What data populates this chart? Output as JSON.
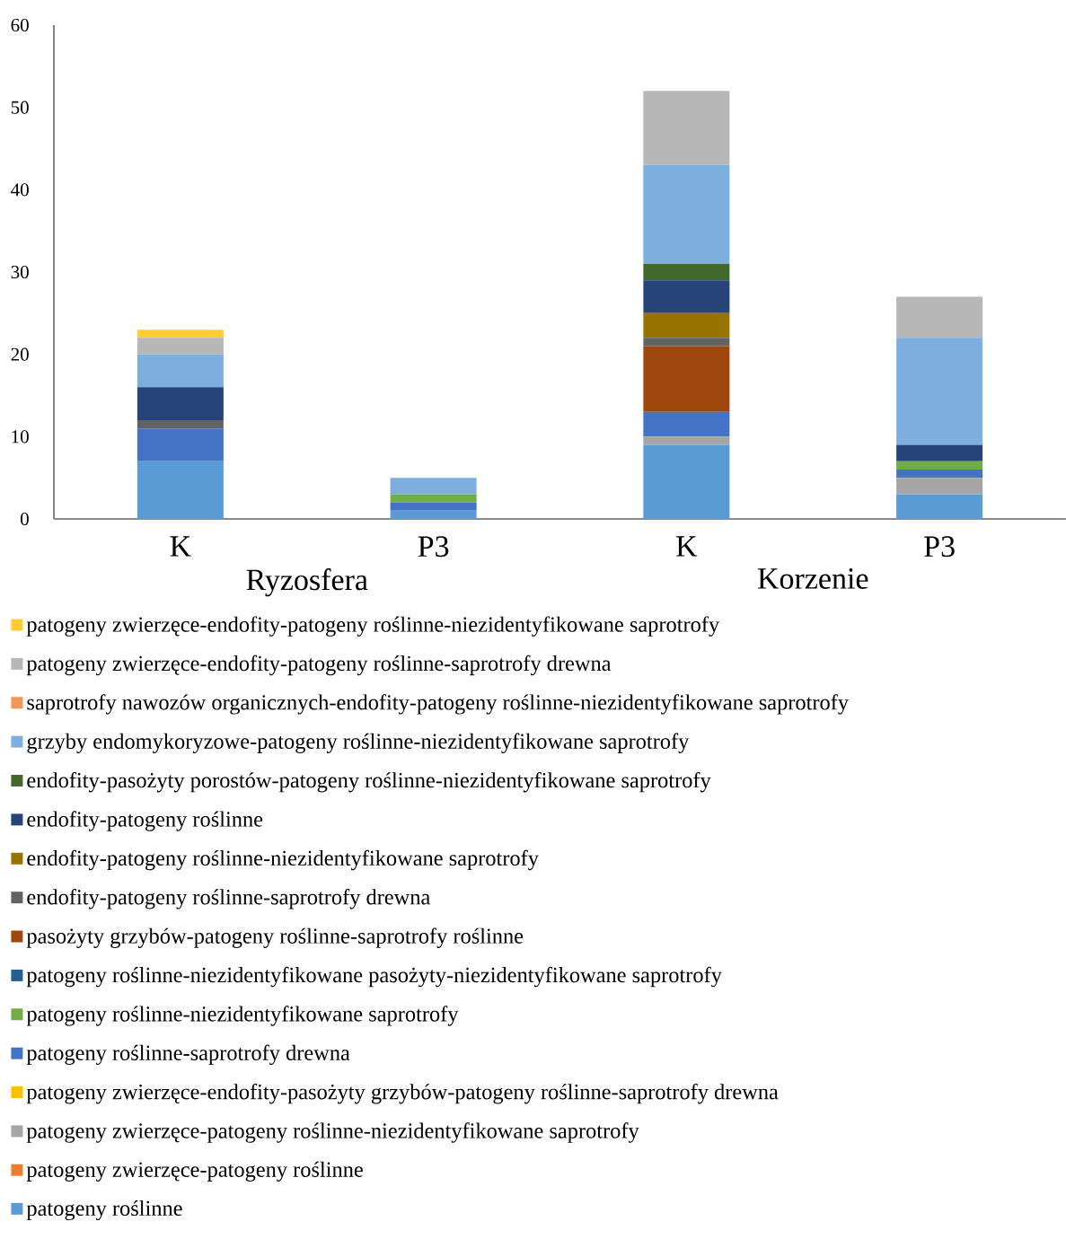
{
  "chart_data": {
    "type": "bar",
    "stacked": true,
    "categories": [
      "K",
      "P3",
      "K",
      "P3"
    ],
    "annotations": [
      "Ryzosfera",
      "Korzenie"
    ],
    "ylim": [
      0,
      60
    ],
    "yticks": [
      0,
      10,
      20,
      30,
      40,
      50,
      60
    ],
    "grid": false,
    "legend": "bottom",
    "series": [
      {
        "name": "patogeny roślinne",
        "color": "#5b9bd5",
        "values": [
          7,
          1,
          9,
          3
        ]
      },
      {
        "name": "patogeny zwierzęce-patogeny roślinne",
        "color": "#ed7d31",
        "values": [
          0,
          0,
          0,
          0
        ]
      },
      {
        "name": "patogeny zwierzęce-patogeny roślinne-niezidentyfikowane saprotrofy",
        "color": "#a5a5a5",
        "values": [
          0,
          0,
          1,
          2
        ]
      },
      {
        "name": "patogeny zwierzęce-endofity-pasożyty grzybów-patogeny roślinne-saprotrofy drewna",
        "color": "#ffc000",
        "values": [
          0,
          0,
          0,
          0
        ]
      },
      {
        "name": "patogeny roślinne-saprotrofy drewna",
        "color": "#4472c4",
        "values": [
          4,
          1,
          3,
          1
        ]
      },
      {
        "name": "patogeny roślinne-niezidentyfikowane saprotrofy",
        "color": "#70ad47",
        "values": [
          0,
          1,
          0,
          1
        ]
      },
      {
        "name": "patogeny roślinne-niezidentyfikowane pasożyty-niezidentyfikowane saprotrofy",
        "color": "#255e91",
        "values": [
          0,
          0,
          0,
          0
        ]
      },
      {
        "name": "pasożyty grzybów-patogeny roślinne-saprotrofy roślinne",
        "color": "#9e480e",
        "values": [
          0,
          0,
          8,
          0
        ]
      },
      {
        "name": "endofity-patogeny roślinne-saprotrofy drewna",
        "color": "#636363",
        "values": [
          1,
          0,
          1,
          0
        ]
      },
      {
        "name": "endofity-patogeny roślinne-niezidentyfikowane saprotrofy",
        "color": "#997300",
        "values": [
          0,
          0,
          3,
          0
        ]
      },
      {
        "name": "endofity-patogeny roślinne",
        "color": "#264478",
        "values": [
          4,
          0,
          4,
          2
        ]
      },
      {
        "name": "endofity-pasożyty porostów-patogeny roślinne-niezidentyfikowane saprotrofy",
        "color": "#43682b",
        "values": [
          0,
          0,
          2,
          0
        ]
      },
      {
        "name": "grzyby endomykoryzowe-patogeny roślinne-niezidentyfikowane saprotrofy",
        "color": "#7cafdd",
        "values": [
          4,
          2,
          12,
          13
        ]
      },
      {
        "name": "saprotrofy nawozów organicznych-endofity-patogeny roślinne-niezidentyfikowane saprotrofy",
        "color": "#f1975a",
        "values": [
          0,
          0,
          0,
          0
        ]
      },
      {
        "name": "patogeny zwierzęce-endofity-patogeny roślinne-saprotrofy drewna",
        "color": "#b7b7b7",
        "values": [
          2,
          0,
          9,
          5
        ]
      },
      {
        "name": "patogeny zwierzęce-endofity-patogeny roślinne-niezidentyfikowane saprotrofy",
        "color": "#ffcd33",
        "values": [
          1,
          0,
          0,
          0
        ]
      }
    ]
  }
}
